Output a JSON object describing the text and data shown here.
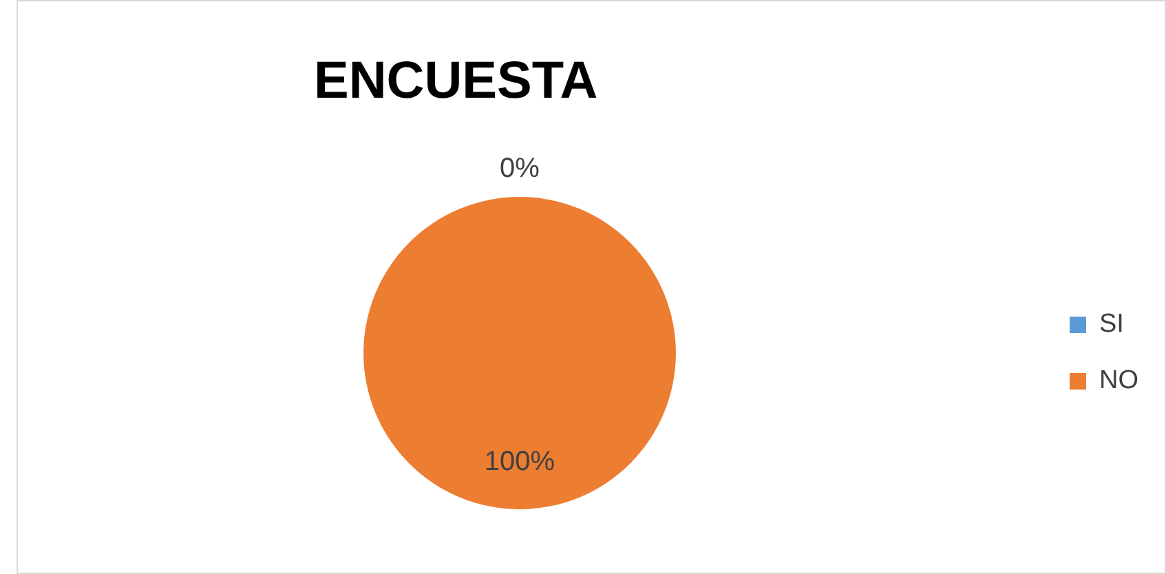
{
  "chart_data": {
    "type": "pie",
    "title": "ENCUESTA",
    "categories": [
      "SI",
      "NO"
    ],
    "values": [
      0,
      100
    ],
    "colors": [
      "#5b9bd5",
      "#ed7d31"
    ],
    "value_labels": [
      "0%",
      "100%"
    ],
    "legend": "right"
  }
}
